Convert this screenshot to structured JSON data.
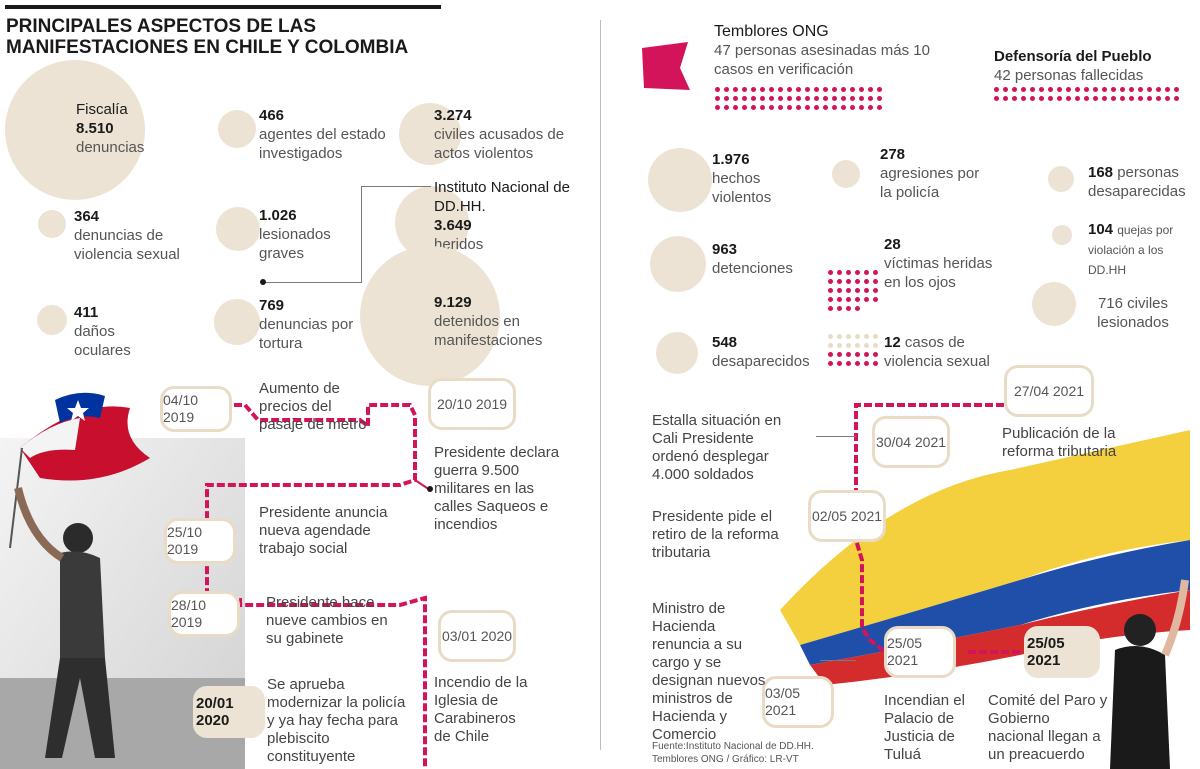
{
  "title": "PRINCIPALES ASPECTOS DE LAS MANIFESTACIONES EN CHILE Y COLOMBIA",
  "colors": {
    "accent": "#d4145a",
    "beige": "#ede3d4",
    "text": "#3a3a3a"
  },
  "chile": {
    "fiscalia": {
      "head": "Fiscalía",
      "num": "8.510",
      "label": "denuncias"
    },
    "agentes": {
      "num": "466",
      "label": "agentes del estado investigados"
    },
    "civiles": {
      "num": "3.274",
      "label": "civiles acusados de actos violentos"
    },
    "indh": {
      "head": "Instituto Nacional de DD.HH.",
      "num": "3.649",
      "label": "heridos"
    },
    "violencia_sexual": {
      "num": "364",
      "label": "denuncias de violencia sexual"
    },
    "lesionados": {
      "num": "1.026",
      "label": "lesionados graves"
    },
    "oculares": {
      "num": "411",
      "label": "daños oculares"
    },
    "tortura": {
      "num": "769",
      "label": "denuncias por tortura"
    },
    "detenidos": {
      "num": "9.129",
      "label": "detenidos en manifestaciones"
    },
    "timeline": [
      {
        "date": "04/10 2019",
        "text": "Aumento de precios del pasaje de metro"
      },
      {
        "date": "20/10 2019",
        "text": "Presidente declara guerra 9.500 militares en las calles Saqueos e incendios"
      },
      {
        "date": "25/10 2019",
        "text": "Presidente anuncia nueva agendade trabajo social"
      },
      {
        "date": "28/10 2019",
        "text": "Presidente hace nueve cambios en su gabinete"
      },
      {
        "date": "03/01 2020",
        "text": "Incendio de la Iglesia de Carabineros de Chile"
      },
      {
        "date": "20/01 2020",
        "text": "Se aprueba modernizar la policía y ya hay fecha para plebiscito constituyente"
      }
    ]
  },
  "colombia": {
    "temblores": {
      "head": "Temblores ONG",
      "label": "47 personas asesinadas más 10 casos en verificación"
    },
    "defensoria": {
      "head": "Defensoría del Pueblo",
      "label": "42 personas fallecidas"
    },
    "hechos": {
      "num": "1.976",
      "label": "hechos violentos"
    },
    "agresiones": {
      "num": "278",
      "label": "agresiones por la policía"
    },
    "desaparecidas": {
      "num": "168",
      "label": "personas desaparecidas"
    },
    "quejas": {
      "num": "104",
      "label": "quejas por violación a los DD.HH"
    },
    "detenciones": {
      "num": "963",
      "label": "detenciones"
    },
    "ojos": {
      "num": "28",
      "label": "víctimas heridas en los ojos"
    },
    "civiles": {
      "label": "716 civiles lesionados"
    },
    "desaparecidos": {
      "num": "548",
      "label": "desaparecidos"
    },
    "violencia": {
      "num": "12",
      "label": "casos de violencia sexual"
    },
    "timeline": [
      {
        "date": "27/04 2021",
        "text": "Publicación de la reforma tributaria"
      },
      {
        "date": "30/04 2021",
        "text": "Estalla situación en Cali Presidente ordenó desplegar 4.000 soldados"
      },
      {
        "date": "02/05 2021",
        "text": "Presidente pide el retiro de la reforma tributaria"
      },
      {
        "date": "03/05 2021",
        "text": "Ministro de Hacienda renuncia a su cargo y se designan nuevos ministros de Hacienda y Comercio"
      },
      {
        "date": "25/05 2021",
        "text": "Incendian el Palacio de Justicia de Tuluá"
      },
      {
        "date": "25/05 2021",
        "text": "Comité del Paro y Gobierno nacional llegan a un preacuerdo"
      }
    ]
  },
  "source": "Fuente:Instituto Nacional de DD.HH. Temblores ONG / Gráfico: LR-VT"
}
